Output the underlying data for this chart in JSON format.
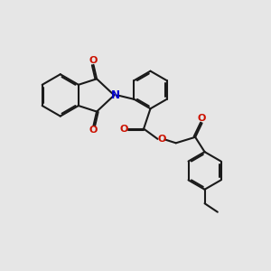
{
  "background_color": "#e6e6e6",
  "bond_color": "#1a1a1a",
  "oxygen_color": "#cc1100",
  "nitrogen_color": "#0000cc",
  "line_width": 1.5,
  "figsize": [
    3.0,
    3.0
  ],
  "dpi": 100,
  "xlim": [
    0,
    10
  ],
  "ylim": [
    0,
    10
  ]
}
